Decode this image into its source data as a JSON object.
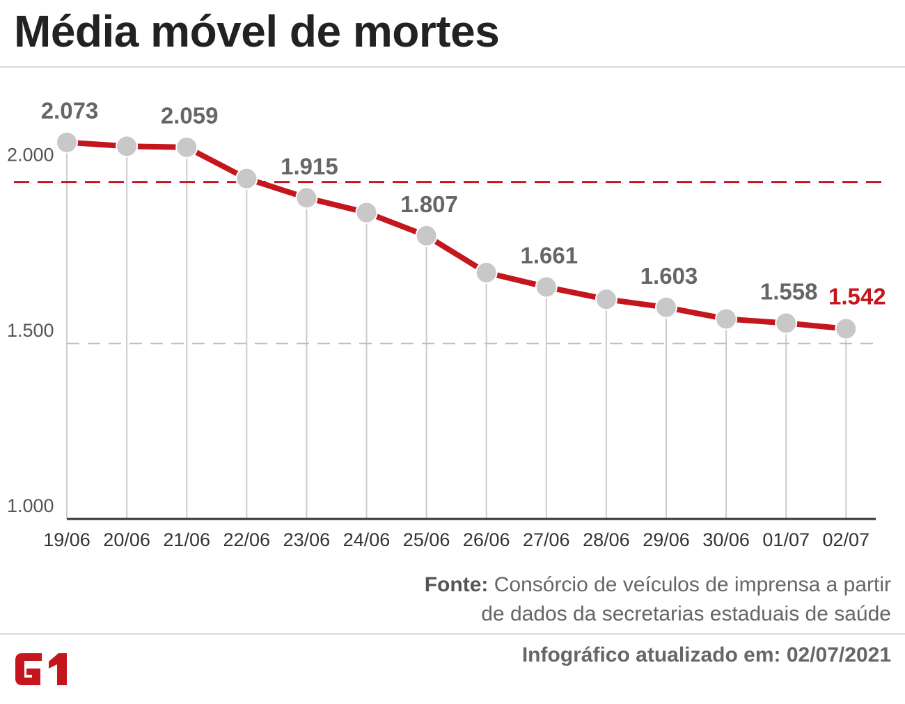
{
  "title": "Média móvel de mortes",
  "source": {
    "label": "Fonte:",
    "line1": "Consórcio de veículos de imprensa a partir",
    "line2": "de dados da secretarias estaduais de saúde"
  },
  "updated": "Infográfico atualizado em: 02/07/2021",
  "logo_text": "G1",
  "colors": {
    "line": "#c4161c",
    "marker": "#c8c8c8",
    "label": "#666666",
    "highlight": "#c4161c",
    "axis": "#333333"
  },
  "chart_data": {
    "type": "line",
    "title": "",
    "xlabel": "",
    "ylabel": "",
    "categories": [
      "19/06",
      "20/06",
      "21/06",
      "22/06",
      "23/06",
      "24/06",
      "25/06",
      "26/06",
      "27/06",
      "28/06",
      "29/06",
      "30/06",
      "01/07",
      "02/07"
    ],
    "series": [
      {
        "values": [
          2073,
          2062,
          2059,
          1970,
          1915,
          1873,
          1807,
          1702,
          1661,
          1626,
          1603,
          1570,
          1558,
          1542
        ]
      }
    ],
    "value_labels": [
      "2.073",
      "",
      "2.059",
      "",
      "1.915",
      "",
      "1.807",
      "",
      "1.661",
      "",
      "1.603",
      "",
      "1.558",
      "1.542"
    ],
    "highlight_index": 13,
    "yticks": [
      1000,
      1500,
      2000
    ],
    "ytick_labels": [
      "1.000",
      "1.500",
      "2.000"
    ],
    "ylim": [
      1000,
      2250
    ],
    "reference_line": 1960,
    "grid": "dashed at 1.500",
    "legend": "none"
  }
}
